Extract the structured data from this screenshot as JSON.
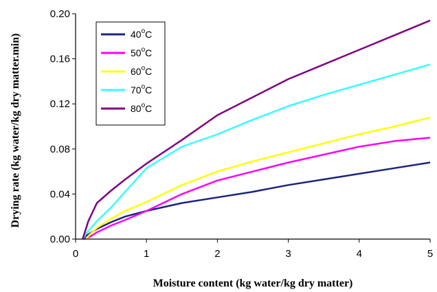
{
  "chart_data": {
    "type": "line",
    "xlabel": "Moisture content (kg water/kg dry matter)",
    "ylabel": "Drying rate (kg water/kg dry matter.min)",
    "xlim": [
      0,
      5
    ],
    "ylim": [
      0,
      0.2
    ],
    "xticks": [
      0,
      1,
      2,
      3,
      4,
      5
    ],
    "yticks": [
      0.0,
      0.04,
      0.08,
      0.12,
      0.16,
      0.2
    ],
    "xtick_labels": [
      "0",
      "1",
      "2",
      "3",
      "4",
      "5"
    ],
    "ytick_labels": [
      "0.00",
      "0.04",
      "0.08",
      "0.12",
      "0.16",
      "0.20"
    ],
    "grid": false,
    "legend_position": "top-left",
    "series": [
      {
        "name": "40°C",
        "name_base": "40",
        "name_sup": "o",
        "name_unit": "C",
        "color": "#1a237e",
        "x": [
          0.1,
          0.15,
          0.3,
          0.5,
          0.7,
          1.0,
          1.5,
          2.0,
          2.5,
          3.0,
          3.5,
          4.0,
          4.5,
          5.0
        ],
        "y": [
          0.0,
          0.003,
          0.009,
          0.015,
          0.02,
          0.025,
          0.032,
          0.037,
          0.042,
          0.048,
          0.053,
          0.058,
          0.063,
          0.068
        ]
      },
      {
        "name": "50°C",
        "name_base": "50",
        "name_sup": "o",
        "name_unit": "C",
        "color": "#ff00ff",
        "x": [
          0.12,
          0.2,
          0.3,
          0.5,
          0.7,
          1.0,
          1.5,
          2.0,
          2.5,
          3.0,
          3.5,
          4.0,
          4.5,
          5.0
        ],
        "y": [
          0.0,
          0.002,
          0.006,
          0.012,
          0.017,
          0.025,
          0.04,
          0.052,
          0.06,
          0.068,
          0.075,
          0.082,
          0.087,
          0.09
        ]
      },
      {
        "name": "60°C",
        "name_base": "60",
        "name_sup": "o",
        "name_unit": "C",
        "color": "#ffff00",
        "x": [
          0.15,
          0.2,
          0.3,
          0.5,
          0.7,
          1.0,
          1.5,
          2.0,
          2.5,
          3.0,
          3.5,
          4.0,
          4.5,
          5.0
        ],
        "y": [
          0.0,
          0.004,
          0.01,
          0.018,
          0.025,
          0.033,
          0.048,
          0.06,
          0.069,
          0.077,
          0.085,
          0.093,
          0.1,
          0.108
        ]
      },
      {
        "name": "70°C",
        "name_base": "70",
        "name_sup": "o",
        "name_unit": "C",
        "color": "#33ffff",
        "x": [
          0.1,
          0.15,
          0.3,
          0.5,
          0.7,
          1.0,
          1.5,
          2.0,
          2.5,
          3.0,
          3.5,
          4.0,
          4.5,
          5.0
        ],
        "y": [
          0.0,
          0.005,
          0.016,
          0.028,
          0.042,
          0.063,
          0.082,
          0.093,
          0.106,
          0.118,
          0.128,
          0.137,
          0.146,
          0.155
        ]
      },
      {
        "name": "80°C",
        "name_base": "80",
        "name_sup": "o",
        "name_unit": "C",
        "color": "#800080",
        "x": [
          0.1,
          0.18,
          0.3,
          0.5,
          0.7,
          1.0,
          1.5,
          2.0,
          2.5,
          3.0,
          3.5,
          4.0,
          4.5,
          5.0
        ],
        "y": [
          0.0,
          0.016,
          0.032,
          0.043,
          0.053,
          0.067,
          0.088,
          0.11,
          0.126,
          0.142,
          0.155,
          0.168,
          0.181,
          0.194
        ]
      }
    ]
  }
}
